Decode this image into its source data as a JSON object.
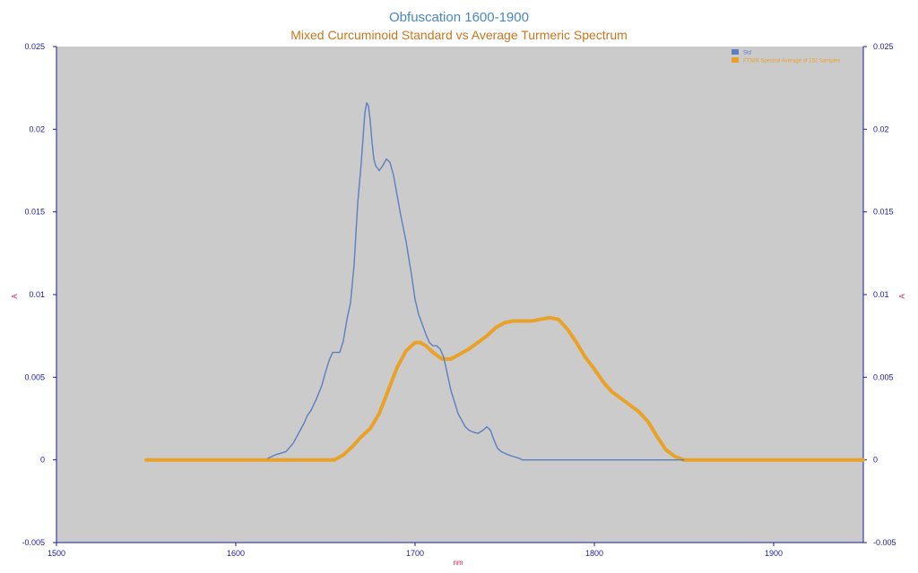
{
  "chart_data": {
    "type": "line",
    "title": "Obfuscation 1600-1900",
    "subtitle": "Mixed Curcuminoid Standard vs Average Turmeric Spectrum",
    "xlabel": "nm",
    "ylabel": "A",
    "y2label": "A",
    "xlim": [
      1500,
      1950
    ],
    "ylim": [
      -0.005,
      0.025
    ],
    "xticks": [
      "1500",
      "1600",
      "1700",
      "1800",
      "1900"
    ],
    "yticks": [
      "-0.005",
      "0",
      "0.005",
      "0.01",
      "0.015",
      "0.02",
      "0.025"
    ],
    "grid": false,
    "legend_position": "top-right",
    "plot_background": "#cbcbcb",
    "series": [
      {
        "name": "Std",
        "color": "#5b7fc0",
        "x": [
          1618,
          1622,
          1628,
          1632,
          1635,
          1638,
          1640,
          1642,
          1645,
          1648,
          1650,
          1652,
          1654,
          1656,
          1658,
          1660,
          1662,
          1664,
          1666,
          1668,
          1670,
          1671,
          1672,
          1673,
          1674,
          1675,
          1676,
          1677,
          1678,
          1680,
          1682,
          1684,
          1686,
          1688,
          1690,
          1692,
          1695,
          1698,
          1700,
          1702,
          1704,
          1706,
          1708,
          1710,
          1712,
          1714,
          1716,
          1718,
          1720,
          1722,
          1724,
          1726,
          1728,
          1730,
          1732,
          1735,
          1738,
          1740,
          1742,
          1744,
          1746,
          1748,
          1750,
          1752,
          1755,
          1758,
          1760,
          1780,
          1800,
          1850
        ],
        "y": [
          0.0001,
          0.0003,
          0.0005,
          0.001,
          0.0016,
          0.0022,
          0.0027,
          0.003,
          0.0037,
          0.0045,
          0.0053,
          0.006,
          0.0065,
          0.0065,
          0.0065,
          0.0072,
          0.0085,
          0.0095,
          0.0118,
          0.0155,
          0.018,
          0.0195,
          0.021,
          0.0216,
          0.0214,
          0.0205,
          0.0192,
          0.0182,
          0.0178,
          0.0175,
          0.0178,
          0.0182,
          0.018,
          0.0172,
          0.016,
          0.0148,
          0.0132,
          0.0112,
          0.0097,
          0.0088,
          0.0082,
          0.0076,
          0.0071,
          0.0069,
          0.0069,
          0.0067,
          0.0062,
          0.0052,
          0.0042,
          0.0035,
          0.0028,
          0.0024,
          0.002,
          0.0018,
          0.0017,
          0.0016,
          0.0018,
          0.002,
          0.0018,
          0.0012,
          0.0007,
          0.0005,
          0.0004,
          0.0003,
          0.0002,
          0.0001,
          0,
          0,
          0,
          0
        ]
      },
      {
        "name": "FTNIR Spectral Average of 152 Samples",
        "color": "#e8a22a",
        "x": [
          1550,
          1600,
          1650,
          1655,
          1660,
          1665,
          1670,
          1675,
          1680,
          1685,
          1690,
          1695,
          1700,
          1703,
          1706,
          1710,
          1715,
          1720,
          1725,
          1730,
          1735,
          1740,
          1745,
          1750,
          1755,
          1760,
          1765,
          1770,
          1775,
          1780,
          1785,
          1790,
          1795,
          1800,
          1805,
          1810,
          1815,
          1820,
          1825,
          1830,
          1835,
          1840,
          1845,
          1850,
          1855,
          1860,
          1900,
          1950
        ],
        "y": [
          0,
          0,
          0,
          0,
          0.0003,
          0.0008,
          0.0014,
          0.0019,
          0.0028,
          0.0042,
          0.0056,
          0.0066,
          0.0071,
          0.0071,
          0.0069,
          0.0065,
          0.0061,
          0.0061,
          0.0064,
          0.0067,
          0.0071,
          0.0075,
          0.008,
          0.0083,
          0.0084,
          0.0084,
          0.0084,
          0.0085,
          0.0086,
          0.0085,
          0.0079,
          0.0071,
          0.0062,
          0.0055,
          0.0047,
          0.0041,
          0.0037,
          0.0033,
          0.0029,
          0.0023,
          0.0014,
          0.0006,
          0.0002,
          0,
          0,
          0,
          0,
          0
        ]
      }
    ]
  }
}
